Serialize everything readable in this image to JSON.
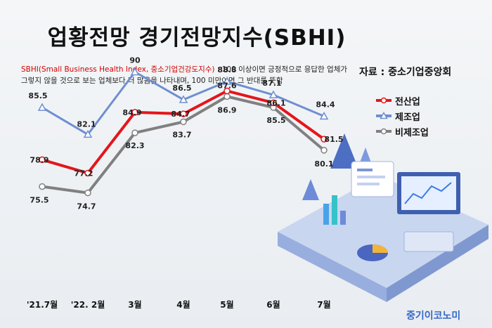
{
  "title": "업황전망 경기전망지수(SBHI)",
  "description": {
    "highlight": "SBHI(Small Business Health Index, 중소기업건강도지수)",
    "rest": " : 100 이상이면 긍정적으로 응답한 업체가 그렇지 않을 것으로 보는 업체보다 더 많음을 나타내며, 100 미만이면 그 반대를 뜻함"
  },
  "source": "자료 : 중소기업중앙회",
  "brand": "중기이코노미",
  "colors": {
    "all": "#e3161b",
    "manufacturing": "#6f8fd0",
    "non_manufacturing": "#808080"
  },
  "chart_data": {
    "type": "line",
    "categories": [
      "'21.7월",
      "'22. 2월",
      "3월",
      "4월",
      "5월",
      "6월",
      "7월"
    ],
    "series": [
      {
        "name": "전산업",
        "values": [
          78.9,
          77.2,
          84.9,
          84.7,
          87.6,
          86.1,
          81.5
        ],
        "labels": [
          "78.9",
          "77.2",
          "84.9",
          "84.7",
          "87.6",
          "86.1",
          "81.5"
        ]
      },
      {
        "name": "제조업",
        "values": [
          85.5,
          82.1,
          90,
          86.5,
          88.8,
          87.1,
          84.4
        ],
        "labels": [
          "85.5",
          "82.1",
          "90",
          "86.5",
          "88.8",
          "87.1",
          "84.4"
        ]
      },
      {
        "name": "비제조업",
        "values": [
          75.5,
          74.7,
          82.3,
          83.7,
          86.9,
          85.5,
          80.1
        ],
        "labels": [
          "75.5",
          "74.7",
          "82.3",
          "83.7",
          "86.9",
          "85.5",
          "80.1"
        ]
      }
    ],
    "ylim": [
      72,
      92
    ]
  }
}
